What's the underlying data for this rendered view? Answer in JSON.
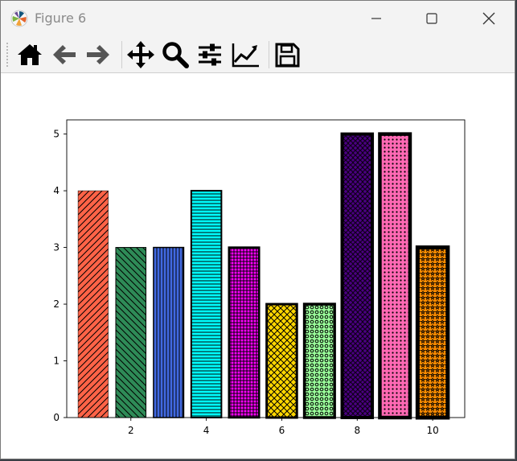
{
  "window": {
    "title": "Figure 6"
  },
  "icons": {
    "app": "matplotlib-logo-icon",
    "minimize": "minimize-icon",
    "maximize": "maximize-icon",
    "close": "close-icon"
  },
  "toolbar": {
    "tools": [
      {
        "name": "home-icon",
        "label": "Home"
      },
      {
        "name": "back-arrow-icon",
        "label": "Back"
      },
      {
        "name": "forward-arrow-icon",
        "label": "Forward"
      },
      {
        "name": "pan-icon",
        "label": "Pan"
      },
      {
        "name": "zoom-icon",
        "label": "Zoom"
      },
      {
        "name": "subplots-config-icon",
        "label": "Configure subplots"
      },
      {
        "name": "edit-axis-icon",
        "label": "Edit axis"
      },
      {
        "name": "save-icon",
        "label": "Save"
      }
    ]
  },
  "chart_data": {
    "type": "bar",
    "title": "",
    "xlabel": "",
    "ylabel": "",
    "x": [
      1,
      2,
      3,
      4,
      5,
      6,
      7,
      8,
      9,
      10
    ],
    "values": [
      4,
      3,
      3,
      4,
      3,
      2,
      2,
      5,
      5,
      3
    ],
    "colors": [
      "#ff6347",
      "#2e8b57",
      "#4169e1",
      "#00ffff",
      "#ff00ff",
      "#ffd700",
      "#98fb98",
      "#4b0082",
      "#ff69b4",
      "#ff8c00"
    ],
    "hatches": [
      "/",
      "\\",
      "|",
      "-",
      "+",
      "x",
      "o",
      "O",
      ".",
      "*"
    ],
    "edge_widths": [
      0.5,
      1,
      1.5,
      2,
      2.5,
      3,
      3.5,
      4,
      4.5,
      5
    ],
    "xticks": [
      2,
      4,
      6,
      8,
      10
    ],
    "yticks": [
      0,
      1,
      2,
      3,
      4,
      5
    ],
    "xlim": [
      0.3,
      10.85
    ],
    "ylim": [
      0,
      5.25
    ],
    "grid": false
  }
}
